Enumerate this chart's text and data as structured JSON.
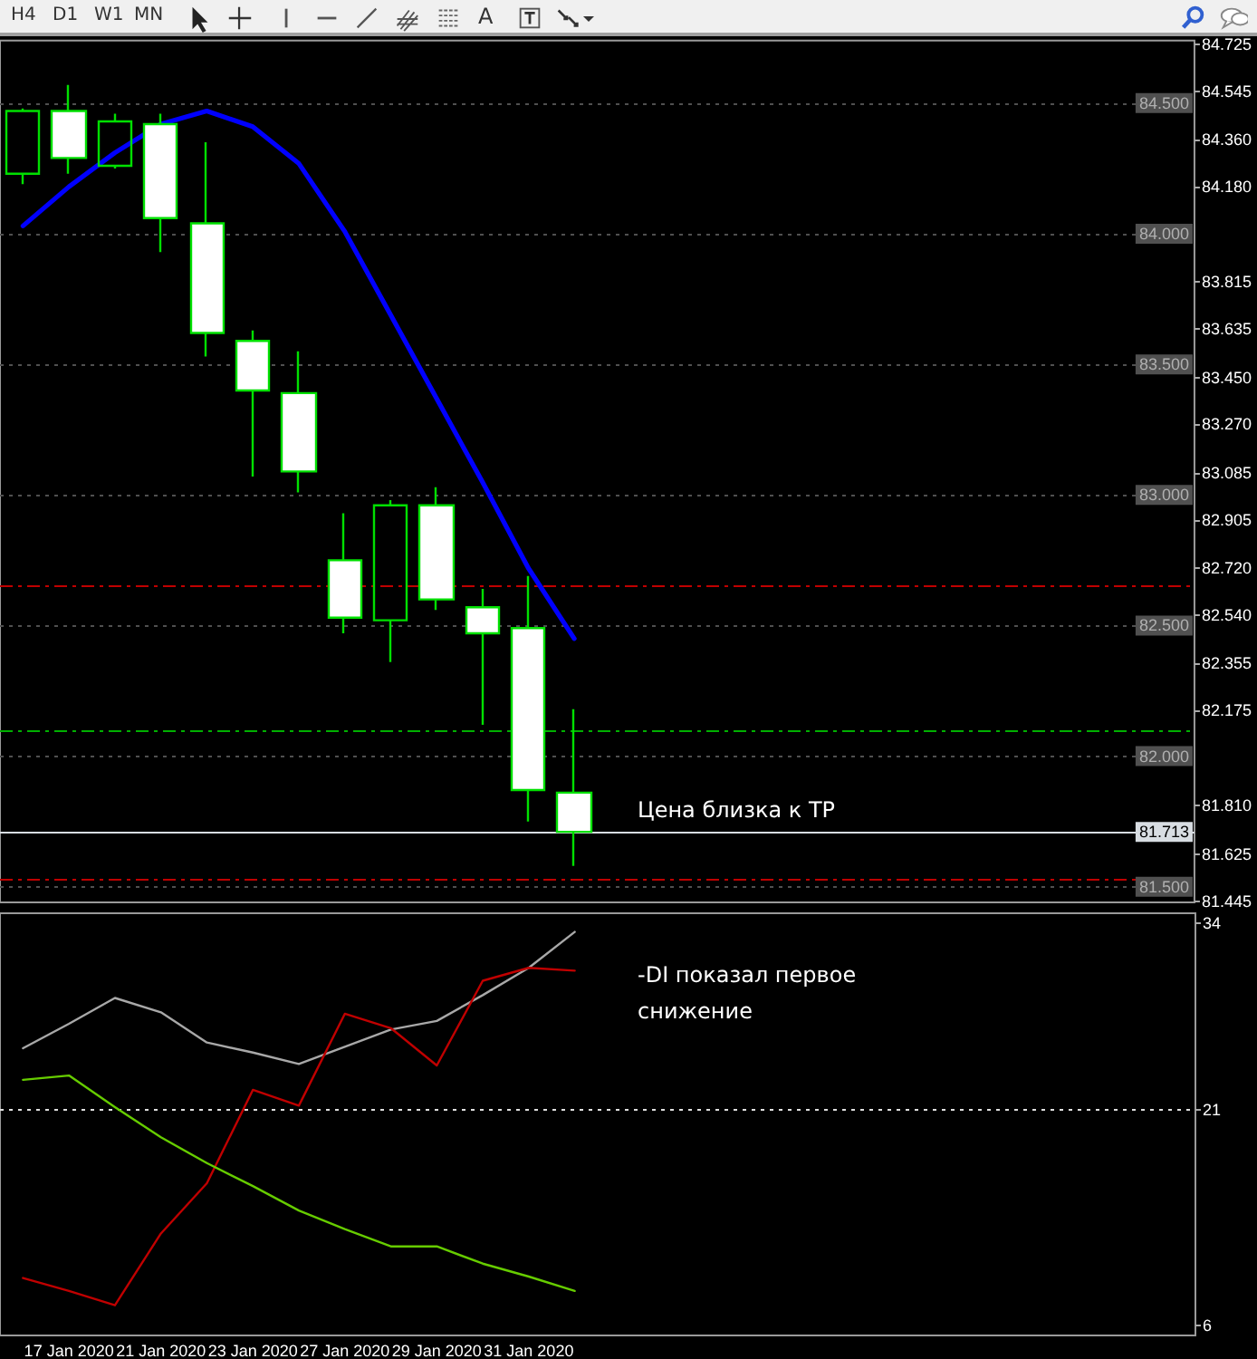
{
  "chart_data": [
    {
      "type": "other",
      "annotations": [
        "H4",
        "D1",
        "W1",
        "MN",
        "A"
      ]
    },
    {
      "type": "candlestick",
      "tick_labels": "y",
      "grid": false,
      "marker": "none",
      "annotations": [
        "Цена близка к TP"
      ],
      "categories": [
        null,
        null,
        null,
        null,
        null,
        null,
        null,
        null,
        null,
        null,
        null,
        null,
        null,
        null,
        null,
        null,
        null,
        null,
        null,
        null,
        null,
        null,
        null,
        null,
        null,
        null
      ],
      "ylim": [
        81.44,
        84.74
      ],
      "yticks": [
        84.725,
        84.545,
        {
          "value": 84.36,
          "label": "84.360"
        },
        {
          "value": 84.18,
          "label": "84.180"
        },
        83.815,
        83.635,
        {
          "value": 83.45,
          "label": "83.450"
        },
        {
          "value": 83.27,
          "label": "83.270"
        },
        83.085,
        82.905,
        {
          "value": 82.72,
          "label": "82.720"
        },
        {
          "value": 82.54,
          "label": "82.540"
        },
        82.355,
        82.175,
        {
          "value": 81.81,
          "label": "81.810"
        },
        81.625,
        81.445
      ],
      "series": [
        {
          "type": "candlestick",
          "color": "#00e000",
          "ohlc": [
            [
              84.23,
              84.48,
              84.19,
              84.47
            ],
            [
              84.47,
              84.57,
              84.23,
              84.29
            ],
            [
              84.26,
              84.46,
              84.25,
              84.43
            ],
            [
              84.42,
              84.46,
              83.93,
              84.06
            ],
            [
              84.04,
              84.35,
              83.53,
              83.62
            ],
            [
              83.59,
              83.63,
              83.07,
              83.4
            ],
            [
              83.39,
              83.55,
              83.01,
              83.09
            ],
            [
              82.75,
              82.93,
              82.47,
              82.53
            ],
            [
              82.52,
              82.98,
              82.36,
              82.96
            ],
            [
              82.96,
              83.03,
              82.56,
              82.6
            ],
            [
              82.57,
              82.64,
              82.12,
              82.47
            ],
            [
              82.49,
              82.69,
              81.75,
              81.87
            ],
            [
              81.86,
              82.18,
              81.58,
              81.71
            ],
            null,
            null,
            null,
            null,
            null,
            null,
            null,
            null,
            null,
            null,
            null,
            null,
            null
          ]
        },
        {
          "type": "line",
          "color": "#0000ff",
          "values": [
            84.03,
            84.18,
            84.31,
            84.42,
            84.47,
            84.41,
            84.27,
            84.01,
            83.69,
            83.37,
            83.05,
            82.72,
            82.45,
            null,
            null,
            null,
            null,
            null,
            null,
            null,
            null,
            null,
            null,
            null,
            null,
            null
          ]
        }
      ],
      "ref_lines": [
        {
          "axis": "y",
          "value": 84.5,
          "label": "84.500",
          "color": "#505050",
          "line_style": "dotted"
        },
        {
          "axis": "y",
          "value": 84.0,
          "label": "84.000",
          "color": "#505050",
          "line_style": "dotted"
        },
        {
          "axis": "y",
          "value": 83.5,
          "label": "83.500",
          "color": "#505050",
          "line_style": "dotted"
        },
        {
          "axis": "y",
          "value": 83.0,
          "label": "83.000",
          "color": "#505050",
          "line_style": "dotted"
        },
        {
          "axis": "y",
          "value": 82.5,
          "label": "82.500",
          "color": "#505050",
          "line_style": "dotted"
        },
        {
          "axis": "y",
          "value": 82.0,
          "label": "82.000",
          "color": "#505050",
          "line_style": "dotted"
        },
        {
          "axis": "y",
          "value": 81.5,
          "label": "81.500",
          "color": "#505050",
          "line_style": "dotted"
        },
        {
          "axis": "y",
          "value": 81.713,
          "label": "81.713",
          "color": "#d8dde2",
          "line_style": "solid"
        },
        {
          "axis": "y",
          "value": 82.65,
          "label": null,
          "color": "#c00000",
          "line_style": "dashed"
        },
        {
          "axis": "y",
          "value": 82.1,
          "label": null,
          "color": "#00b000",
          "line_style": "dashed"
        },
        {
          "axis": "y",
          "value": 81.53,
          "label": null,
          "color": "#c00000",
          "line_style": "dashed"
        }
      ]
    },
    {
      "type": "line",
      "grid": false,
      "marker": "none",
      "annotations": [
        "-DI показал первое снижение"
      ],
      "categories": [
        null,
        "17 Jan 2020",
        null,
        "21 Jan 2020",
        null,
        "23 Jan 2020",
        null,
        "27 Jan 2020",
        null,
        "29 Jan 2020",
        null,
        "31 Jan 2020",
        null,
        null,
        null,
        null,
        null,
        null,
        null,
        null,
        null,
        null,
        null,
        null,
        null,
        null
      ],
      "ylim": [
        5.3,
        34.7
      ],
      "yticks": [
        6,
        21,
        34
      ],
      "series": [
        {
          "color": "#a8a8a8",
          "values": [
            25.3,
            27.0,
            28.8,
            27.8,
            25.7,
            25.0,
            24.2,
            25.4,
            26.6,
            27.2,
            29.0,
            30.9,
            33.4,
            null,
            null,
            null,
            null,
            null,
            null,
            null,
            null,
            null,
            null,
            null,
            null,
            null
          ]
        },
        {
          "color": "#c00000",
          "values": [
            9.3,
            8.4,
            7.4,
            12.4,
            15.9,
            22.4,
            21.3,
            27.7,
            26.7,
            24.1,
            30.0,
            30.9,
            30.7,
            null,
            null,
            null,
            null,
            null,
            null,
            null,
            null,
            null,
            null,
            null,
            null,
            null
          ]
        },
        {
          "color": "#66cc00",
          "values": [
            23.1,
            23.4,
            21.2,
            19.1,
            17.3,
            15.7,
            14.0,
            12.7,
            11.5,
            11.5,
            10.3,
            9.4,
            8.4,
            null,
            null,
            null,
            null,
            null,
            null,
            null,
            null,
            null,
            null,
            null,
            null,
            null
          ]
        }
      ],
      "ref_lines": [
        {
          "axis": "y",
          "value": 21,
          "label": null,
          "color": "#e0e0e0",
          "line_style": "dotted"
        }
      ]
    }
  ]
}
